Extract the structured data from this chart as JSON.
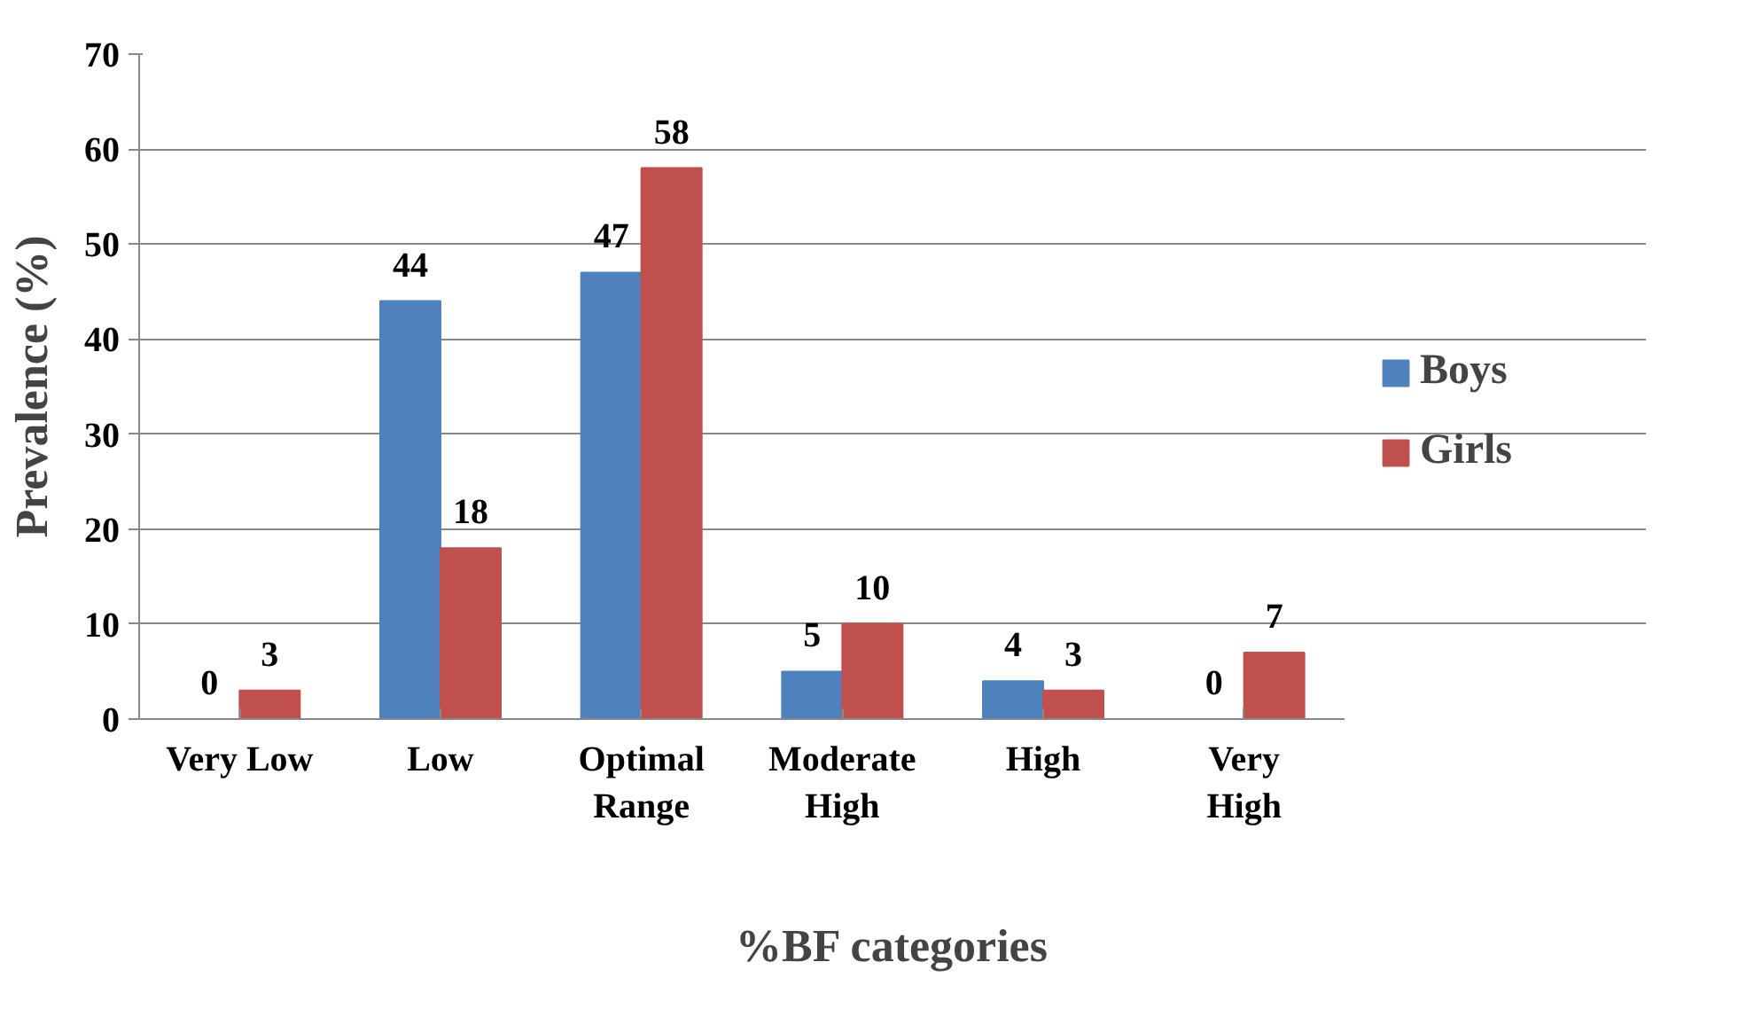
{
  "chart_data": {
    "type": "bar",
    "xlabel": "%BF categories",
    "ylabel": "Prevalence (%)",
    "categories": [
      "Very Low",
      "Low",
      "Optimal\nRange",
      "Moderate\nHigh",
      "High",
      "Very\nHigh"
    ],
    "series": [
      {
        "name": "Boys",
        "color": "#4f81bd",
        "values": [
          0,
          44,
          47,
          5,
          4,
          0
        ]
      },
      {
        "name": "Girls",
        "color": "#c0504d",
        "values": [
          3,
          18,
          58,
          10,
          3,
          7
        ]
      }
    ],
    "ylim": [
      0,
      70
    ],
    "yticks": [
      0,
      10,
      20,
      30,
      40,
      50,
      60,
      70
    ],
    "grid": "y",
    "legend": "right",
    "data_labels": true
  }
}
